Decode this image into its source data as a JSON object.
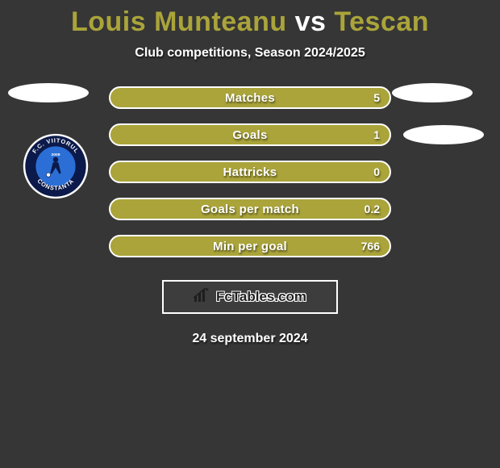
{
  "title": {
    "player1": "Louis Munteanu",
    "vs": "vs",
    "player2": "Tescan",
    "player1_color": "#aaa43a",
    "vs_color": "#ffffff",
    "player2_color": "#aaa43a"
  },
  "subtitle": "Club competitions, Season 2024/2025",
  "stats": [
    {
      "label": "Matches",
      "value": "5"
    },
    {
      "label": "Goals",
      "value": "1"
    },
    {
      "label": "Hattricks",
      "value": "0"
    },
    {
      "label": "Goals per match",
      "value": "0.2"
    },
    {
      "label": "Min per goal",
      "value": "766"
    }
  ],
  "bar_style": {
    "fill_color": "#aaa43a",
    "border_color": "#ffffff",
    "text_color": "#ffffff"
  },
  "club_badge": {
    "outer_ring_color": "#0b1a4a",
    "inner_color": "#2b6fd6",
    "ring_text_top": "F.C. VIITORUL",
    "ring_text_bottom": "CONSTANTA",
    "year": "2009"
  },
  "brand": {
    "icon": "bar-chart-icon",
    "text": "FcTables.com"
  },
  "date": "24 september 2024",
  "background_color": "#363636"
}
